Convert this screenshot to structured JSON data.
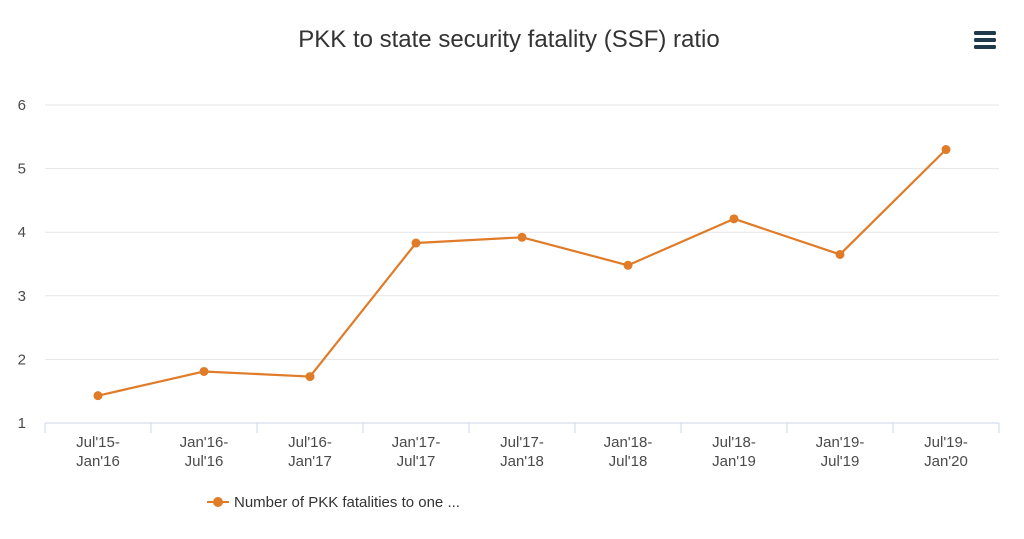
{
  "chart_data": {
    "type": "line",
    "title": "PKK to state security fatality (SSF) ratio",
    "xlabel": "",
    "ylabel": "",
    "categories": [
      [
        "Jul'15-",
        "Jan'16"
      ],
      [
        "Jan'16-",
        "Jul'16"
      ],
      [
        "Jul'16-",
        "Jan'17"
      ],
      [
        "Jan'17-",
        "Jul'17"
      ],
      [
        "Jul'17-",
        "Jan'18"
      ],
      [
        "Jan'18-",
        "Jul'18"
      ],
      [
        "Jul'18-",
        "Jan'19"
      ],
      [
        "Jan'19-",
        "Jul'19"
      ],
      [
        "Jul'19-",
        "Jan'20"
      ]
    ],
    "ylim": [
      1,
      6
    ],
    "yticks": [
      1,
      2,
      3,
      4,
      5,
      6
    ],
    "grid": true,
    "legend_position": "bottom-left",
    "series": [
      {
        "name": "Number of PKK fatalities to one ...",
        "color": "#e07b28",
        "values": [
          1.43,
          1.81,
          1.73,
          3.83,
          3.92,
          3.48,
          4.21,
          3.65,
          5.3
        ]
      }
    ]
  },
  "menu": {
    "icon": "hamburger-menu-icon"
  }
}
